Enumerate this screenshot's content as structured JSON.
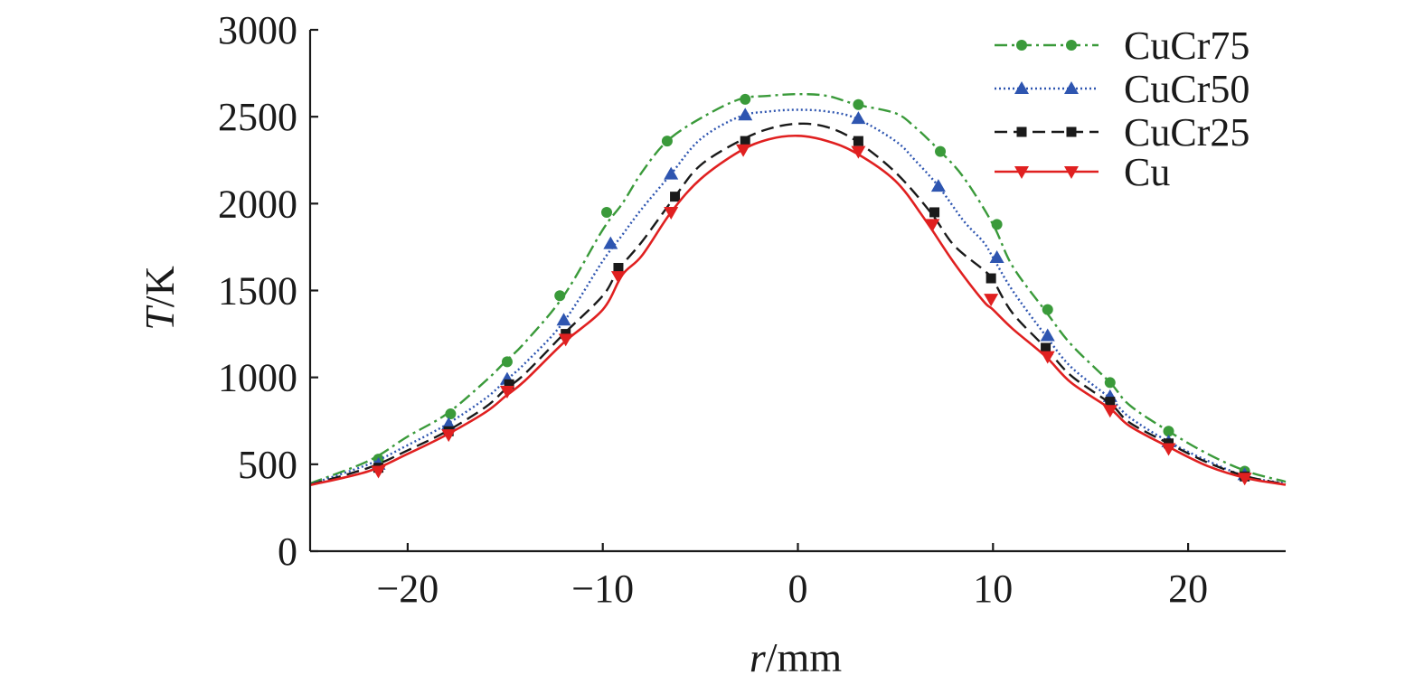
{
  "chart_data": {
    "type": "line",
    "xlabel_italic": "r",
    "xlabel_unit": "/mm",
    "ylabel_italic": "T",
    "ylabel_unit": "/K",
    "xlim": [
      -25,
      25
    ],
    "ylim": [
      0,
      3000
    ],
    "x_ticks": [
      -20,
      -10,
      0,
      10,
      20
    ],
    "x_tick_labels": [
      "−20",
      "−10",
      "0",
      "10",
      "20"
    ],
    "y_ticks": [
      0,
      500,
      1000,
      1500,
      2000,
      2500,
      3000
    ],
    "y_tick_labels": [
      "0",
      "500",
      "1000",
      "1500",
      "2000",
      "2500",
      "3000"
    ],
    "grid": false,
    "legend_position": "top-right",
    "series": [
      {
        "name": "CuCr75",
        "color": "#3a9a3a",
        "dash": "dash-dot",
        "marker": "circle",
        "x": [
          -25,
          -22,
          -20,
          -18,
          -16,
          -15,
          -14,
          -12,
          -10,
          -9,
          -8,
          -6.7,
          -5,
          -3,
          -1.5,
          0,
          1.5,
          3,
          5,
          6,
          7.3,
          8.5,
          10,
          11,
          12.7,
          14,
          16,
          17,
          19,
          21,
          23,
          25
        ],
        "y": [
          390,
          520,
          660,
          790,
          980,
          1090,
          1200,
          1470,
          1850,
          2000,
          2180,
          2360,
          2490,
          2600,
          2620,
          2630,
          2620,
          2570,
          2520,
          2440,
          2300,
          2150,
          1880,
          1640,
          1380,
          1190,
          970,
          840,
          690,
          560,
          460,
          400
        ],
        "markers_x": [
          -21.5,
          -17.8,
          -14.9,
          -12.2,
          -9.8,
          -6.7,
          -2.7,
          3.1,
          7.3,
          10.2,
          12.8,
          16.0,
          19.0,
          22.9
        ],
        "markers_y": [
          530,
          790,
          1090,
          1470,
          1950,
          2360,
          2600,
          2570,
          2300,
          1880,
          1390,
          970,
          690,
          460
        ]
      },
      {
        "name": "CuCr50",
        "color": "#2e55b0",
        "dash": "dotted",
        "marker": "triangle-up",
        "x": [
          -25,
          -22,
          -20,
          -18,
          -16,
          -15,
          -14,
          -12,
          -10,
          -9,
          -8,
          -6.5,
          -5,
          -3,
          -1.5,
          0,
          1.5,
          3,
          5,
          6,
          7.2,
          8.5,
          9.5,
          10,
          11,
          12.7,
          14,
          16,
          17,
          19,
          21,
          23,
          25
        ],
        "y": [
          385,
          500,
          610,
          730,
          880,
          980,
          1080,
          1320,
          1670,
          1820,
          1970,
          2170,
          2370,
          2500,
          2530,
          2540,
          2530,
          2490,
          2360,
          2250,
          2100,
          1900,
          1780,
          1690,
          1500,
          1240,
          1060,
          880,
          770,
          630,
          520,
          430,
          390
        ],
        "markers_x": [
          -21.5,
          -17.9,
          -14.9,
          -12.0,
          -9.6,
          -6.5,
          -2.7,
          3.1,
          7.2,
          10.2,
          12.8,
          16.0,
          19.0,
          22.9
        ],
        "markers_y": [
          500,
          730,
          990,
          1330,
          1770,
          2170,
          2510,
          2490,
          2100,
          1690,
          1240,
          890,
          630,
          440
        ]
      },
      {
        "name": "CuCr25",
        "color": "#1a1a1a",
        "dash": "dashed",
        "marker": "square",
        "x": [
          -25,
          -22,
          -20,
          -18,
          -16,
          -15,
          -14,
          -12,
          -10,
          -9.2,
          -8,
          -6.3,
          -5,
          -3,
          -1.5,
          0,
          1.5,
          3,
          5,
          6.8,
          8,
          9.5,
          10,
          11,
          12.7,
          14,
          16,
          17,
          19,
          21,
          23,
          25
        ],
        "y": [
          382,
          480,
          580,
          690,
          830,
          930,
          1020,
          1250,
          1470,
          1620,
          1780,
          2040,
          2220,
          2360,
          2430,
          2460,
          2440,
          2360,
          2180,
          1950,
          1760,
          1620,
          1560,
          1370,
          1170,
          1010,
          850,
          740,
          620,
          510,
          430,
          385
        ],
        "markers_x": [
          -21.5,
          -17.9,
          -14.8,
          -11.9,
          -9.2,
          -6.3,
          -2.7,
          3.1,
          7.0,
          9.9,
          12.7,
          16.0,
          19.0,
          22.9
        ],
        "markers_y": [
          480,
          690,
          960,
          1250,
          1630,
          2040,
          2360,
          2360,
          1950,
          1570,
          1170,
          860,
          620,
          430
        ]
      },
      {
        "name": "Cu",
        "color": "#e02020",
        "dash": "solid",
        "marker": "triangle-down",
        "x": [
          -25,
          -22,
          -20,
          -18,
          -16,
          -15,
          -14,
          -12,
          -10,
          -9,
          -8,
          -6.5,
          -5,
          -3,
          -1.5,
          0,
          1.5,
          3,
          5,
          6.5,
          8,
          9.5,
          10,
          11,
          12.7,
          14,
          16,
          17,
          19,
          21,
          23,
          25
        ],
        "y": [
          380,
          460,
          560,
          670,
          800,
          890,
          980,
          1200,
          1390,
          1590,
          1700,
          1950,
          2140,
          2300,
          2370,
          2390,
          2360,
          2290,
          2130,
          1910,
          1660,
          1440,
          1390,
          1280,
          1120,
          970,
          820,
          720,
          600,
          490,
          420,
          382
        ],
        "markers_x": [
          -21.5,
          -17.9,
          -14.9,
          -11.9,
          -9.2,
          -6.5,
          -2.8,
          3.1,
          6.9,
          9.9,
          12.8,
          16.0,
          19.0,
          22.9
        ],
        "markers_y": [
          460,
          670,
          920,
          1220,
          1580,
          1950,
          2310,
          2300,
          1880,
          1450,
          1120,
          810,
          590,
          420
        ]
      }
    ]
  }
}
